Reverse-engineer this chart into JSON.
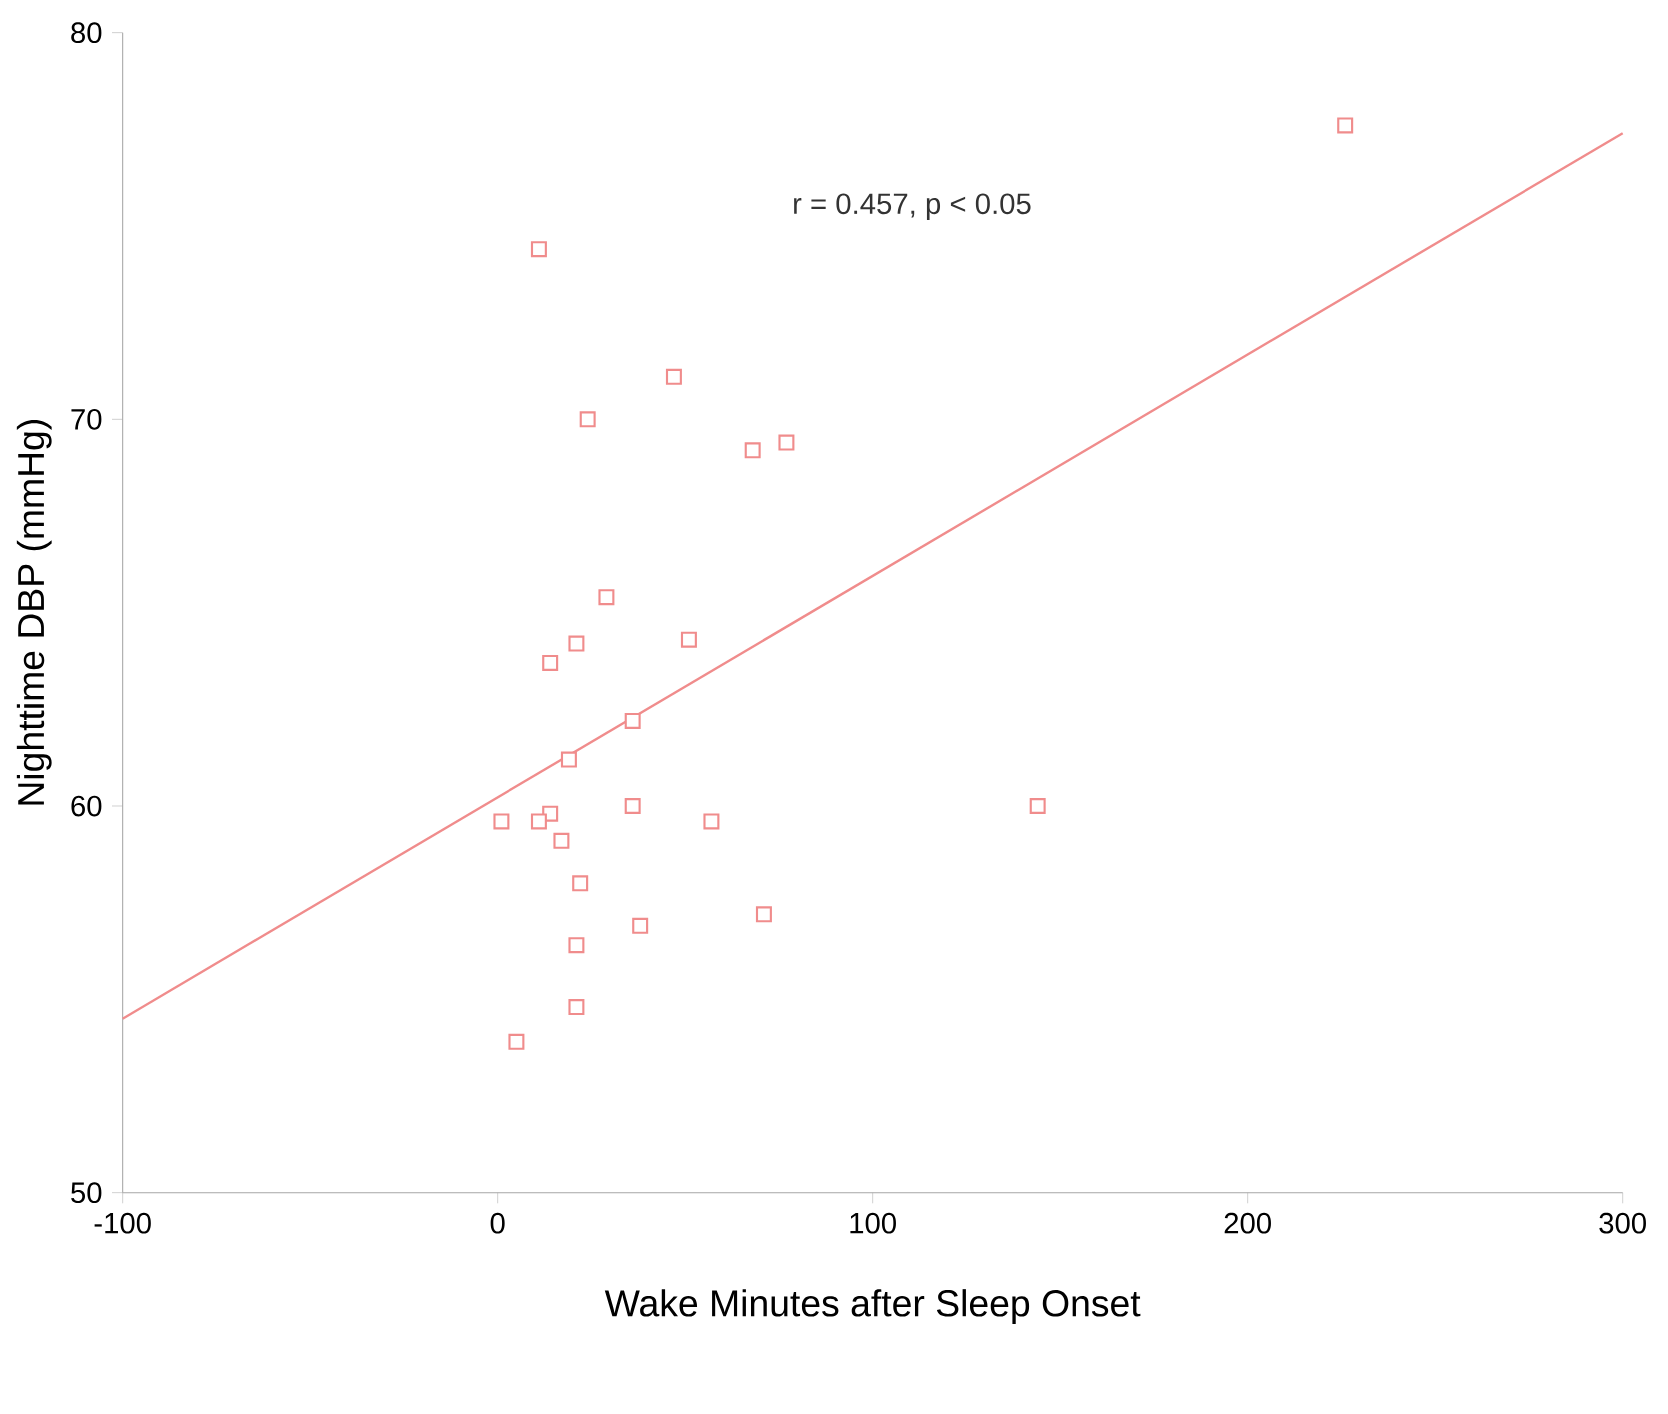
{
  "chart_data": {
    "type": "scatter",
    "xlabel": "Wake Minutes after Sleep Onset",
    "ylabel": "Nighttime DBP (mmHg)",
    "xlim": [
      -100,
      300
    ],
    "xticks": [
      -100,
      0,
      100,
      200,
      300
    ],
    "ylim": [
      50,
      80
    ],
    "yticks": [
      50,
      60,
      70,
      80
    ],
    "grid": false,
    "annotations": [
      "r = 0.457, p < 0.05"
    ],
    "series": [
      {
        "color": "#f08c8c",
        "marker": "square",
        "x": [
          11,
          47,
          24,
          68,
          77,
          226,
          29,
          21,
          14,
          51,
          36,
          19,
          1,
          14,
          11,
          17,
          36,
          57,
          144,
          22,
          71,
          38,
          21,
          21,
          5
        ],
        "values": [
          74.4,
          71.1,
          70.0,
          69.2,
          69.4,
          77.6,
          65.4,
          64.2,
          63.7,
          64.3,
          62.2,
          61.2,
          59.6,
          59.8,
          59.6,
          59.1,
          60.0,
          59.6,
          60.0,
          58.0,
          57.2,
          56.9,
          56.4,
          54.8,
          53.9
        ]
      },
      {
        "type": "line",
        "color": "#f08c8c",
        "line_style": "solid",
        "x": [
          -100,
          300
        ],
        "values": [
          54.5,
          77.4
        ]
      }
    ]
  }
}
